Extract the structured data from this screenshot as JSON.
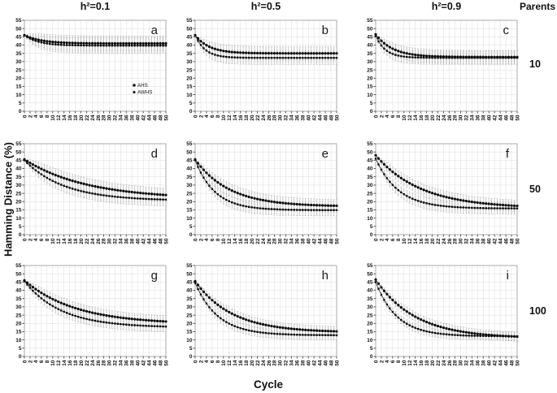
{
  "figure": {
    "col_headers": [
      "h²=0.1",
      "h²=0.5",
      "h²=0.9"
    ],
    "parents_header": "Parents",
    "row_labels": [
      "10",
      "50",
      "100"
    ],
    "ylabel": "Hamming Distance (%)",
    "xlabel": "Cycle",
    "colors": {
      "series": "#0d0d0d",
      "error_bar": "#b4b4b4",
      "grid": "#dcdcdc",
      "frame": "#9a9a9a",
      "text": "#111111"
    }
  },
  "chart_data": {
    "type": "line",
    "x_axis": {
      "label": "Cycle",
      "min": 0,
      "max": 50,
      "tick_step": 2
    },
    "y_axis": {
      "label": "Hamming Distance (%)",
      "min": 0,
      "max": 55,
      "tick_step": 5
    },
    "grid": "on",
    "error_bars": "gray vertical bars on every point",
    "legend": {
      "location": "inside panel a, lower right",
      "entries": [
        "AHS",
        "AWHS"
      ]
    },
    "sample_cycles": [
      0,
      5,
      10,
      15,
      20,
      25,
      30,
      35,
      40,
      45,
      50
    ],
    "panels": [
      {
        "id": "a",
        "h2": "0.1",
        "parents": "10",
        "series": [
          {
            "name": "AHS",
            "marker": "circle",
            "start": 46,
            "plateau": 41,
            "tau": 6,
            "err_halfwidth": 4.5,
            "values_at_sample_cycles": [
              46,
              43.2,
              41.9,
              41.4,
              41.2,
              41.1,
              41,
              41,
              41,
              41,
              41
            ]
          },
          {
            "name": "AWHS",
            "marker": "square",
            "start": 46,
            "plateau": 39.7,
            "tau": 5,
            "err_halfwidth": 4.5,
            "values_at_sample_cycles": [
              46,
              42,
              40.6,
              40,
              39.8,
              39.7,
              39.7,
              39.7,
              39.7,
              39.7,
              39.7
            ]
          }
        ]
      },
      {
        "id": "b",
        "h2": "0.5",
        "parents": "10",
        "series": [
          {
            "name": "AHS",
            "marker": "circle",
            "start": 46,
            "plateau": 35,
            "tau": 5,
            "err_halfwidth": 4,
            "values_at_sample_cycles": [
              46,
              39,
              36.5,
              35.5,
              35.2,
              35.1,
              35,
              35,
              35,
              35,
              35
            ]
          },
          {
            "name": "AWHS",
            "marker": "square",
            "start": 46,
            "plateau": 32.3,
            "tau": 3.5,
            "err_halfwidth": 4,
            "values_at_sample_cycles": [
              46,
              35.6,
              33.1,
              32.5,
              32.4,
              32.3,
              32.3,
              32.3,
              32.3,
              32.3,
              32.3
            ]
          }
        ]
      },
      {
        "id": "c",
        "h2": "0.9",
        "parents": "10",
        "series": [
          {
            "name": "AHS",
            "marker": "circle",
            "start": 46.5,
            "plateau": 32.8,
            "tau": 6,
            "err_halfwidth": 4,
            "values_at_sample_cycles": [
              46.5,
              38.8,
              35.4,
              33.9,
              33.3,
              33,
              32.9,
              32.8,
              32.8,
              32.8,
              32.8
            ]
          },
          {
            "name": "AWHS",
            "marker": "square",
            "start": 45.5,
            "plateau": 32.3,
            "tau": 3.5,
            "err_halfwidth": 4,
            "values_at_sample_cycles": [
              45.5,
              35.5,
              33.1,
              32.5,
              32.4,
              32.3,
              32.3,
              32.3,
              32.3,
              32.3,
              32.3
            ]
          }
        ]
      },
      {
        "id": "d",
        "h2": "0.1",
        "parents": "50",
        "series": [
          {
            "name": "AHS",
            "marker": "circle",
            "start": 45.5,
            "plateau": 21.5,
            "tau": 22,
            "err_halfwidth": 4,
            "values_at_sample_cycles": [
              45.5,
              40.6,
              36.7,
              33.6,
              31.2,
              29.2,
              27.6,
              26.4,
              25.4,
              24.6,
              24
            ]
          },
          {
            "name": "AWHS",
            "marker": "square",
            "start": 45,
            "plateau": 20.5,
            "tau": 14,
            "err_halfwidth": 3.8,
            "values_at_sample_cycles": [
              45,
              37.6,
              32.5,
              28.9,
              26.4,
              24.6,
              23.4,
              22.5,
              21.9,
              21.5,
              21.2
            ]
          }
        ]
      },
      {
        "id": "e",
        "h2": "0.5",
        "parents": "50",
        "series": [
          {
            "name": "AHS",
            "marker": "circle",
            "start": 45.5,
            "plateau": 17,
            "tau": 12,
            "err_halfwidth": 3.8,
            "values_at_sample_cycles": [
              45.5,
              35.8,
              29.4,
              25.2,
              22.4,
              20.5,
              19.3,
              18.5,
              18,
              17.7,
              17.4
            ]
          },
          {
            "name": "AWHS",
            "marker": "square",
            "start": 45,
            "plateau": 14.8,
            "tau": 7,
            "err_halfwidth": 3.5,
            "values_at_sample_cycles": [
              45,
              29.6,
              22,
              18.3,
              16.5,
              15.6,
              15.2,
              15,
              14.9,
              14.9,
              14.8
            ]
          }
        ]
      },
      {
        "id": "f",
        "h2": "0.9",
        "parents": "50",
        "series": [
          {
            "name": "AHS",
            "marker": "circle",
            "start": 48,
            "plateau": 16,
            "tau": 16,
            "err_halfwidth": 3.5,
            "values_at_sample_cycles": [
              48,
              39.4,
              33.1,
              28.5,
              25.2,
              22.7,
              20.9,
              19.6,
              18.6,
              17.9,
              17.4
            ]
          },
          {
            "name": "AWHS",
            "marker": "square",
            "start": 46,
            "plateau": 15.8,
            "tau": 8,
            "err_halfwidth": 3.5,
            "values_at_sample_cycles": [
              46,
              32,
              24.5,
              20.4,
              18.3,
              17.1,
              16.5,
              16.2,
              16,
              15.9,
              15.9
            ]
          }
        ]
      },
      {
        "id": "g",
        "h2": "0.1",
        "parents": "100",
        "series": [
          {
            "name": "AHS",
            "marker": "circle",
            "start": 46,
            "plateau": 19.5,
            "tau": 18,
            "err_halfwidth": 3.5,
            "values_at_sample_cycles": [
              46,
              39.6,
              34.7,
              31,
              28.2,
              26.1,
              24.5,
              23.3,
              22.4,
              21.7,
              21.1
            ]
          },
          {
            "name": "AWHS",
            "marker": "square",
            "start": 45.5,
            "plateau": 17.5,
            "tau": 13,
            "err_halfwidth": 3.2,
            "values_at_sample_cycles": [
              45.5,
              36.6,
              30.5,
              26.3,
              23.5,
              21.6,
              20.3,
              19.4,
              18.8,
              18.4,
              18.1
            ]
          }
        ]
      },
      {
        "id": "h",
        "h2": "0.5",
        "parents": "100",
        "series": [
          {
            "name": "AHS",
            "marker": "circle",
            "start": 45.5,
            "plateau": 14.5,
            "tau": 13,
            "err_halfwidth": 3,
            "values_at_sample_cycles": [
              45.5,
              35.6,
              28.9,
              24.3,
              21.2,
              19,
              17.6,
              16.6,
              15.9,
              15.5,
              15.2
            ]
          },
          {
            "name": "AWHS",
            "marker": "square",
            "start": 44.5,
            "plateau": 12.8,
            "tau": 8,
            "err_halfwidth": 2.8,
            "values_at_sample_cycles": [
              44.5,
              29.8,
              21.9,
              17.7,
              15.4,
              14.2,
              13.5,
              13.2,
              13,
              12.9,
              12.9
            ]
          }
        ]
      },
      {
        "id": "i",
        "h2": "0.9",
        "parents": "100",
        "series": [
          {
            "name": "AHS",
            "marker": "circle",
            "start": 46.5,
            "plateau": 11,
            "tau": 14,
            "err_halfwidth": 2.8,
            "values_at_sample_cycles": [
              46.5,
              35.8,
              28.4,
              23.2,
              19.5,
              17,
              15.2,
              13.9,
              13,
              12.4,
              12
            ]
          },
          {
            "name": "AWHS",
            "marker": "square",
            "start": 45,
            "plateau": 12.2,
            "tau": 7.5,
            "err_halfwidth": 2.5,
            "values_at_sample_cycles": [
              45,
              29,
              20.8,
              16.6,
              14.5,
              13.4,
              12.8,
              12.5,
              12.4,
              12.3,
              12.3
            ]
          }
        ]
      }
    ]
  }
}
